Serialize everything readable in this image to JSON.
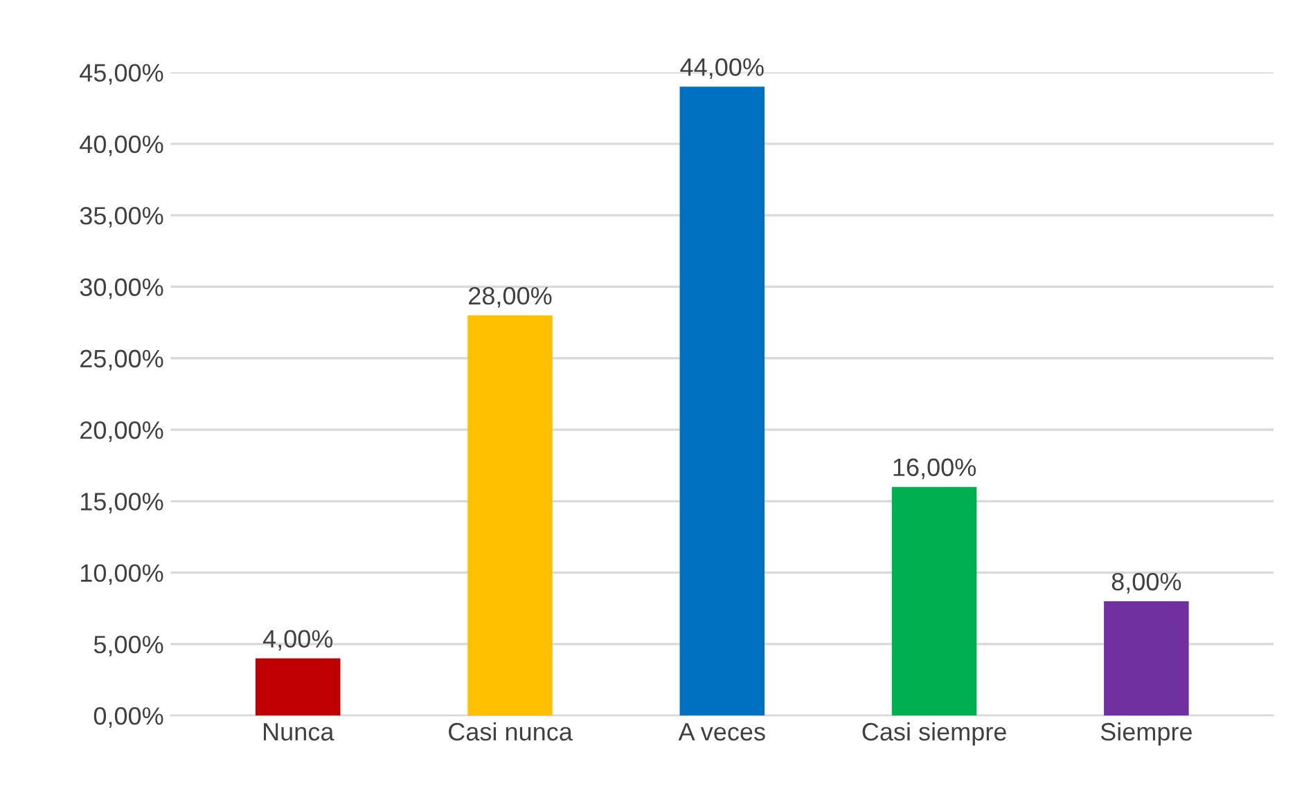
{
  "chart_data": {
    "type": "bar",
    "categories": [
      "Nunca",
      "Casi nunca",
      "A veces",
      "Casi siempre",
      "Siempre"
    ],
    "values": [
      4,
      28,
      44,
      16,
      8
    ],
    "colors": [
      "#c00000",
      "#ffc000",
      "#0070c0",
      "#00b050",
      "#7030a0"
    ],
    "value_labels": [
      "4,00%",
      "28,00%",
      "44,00%",
      "16,00%",
      "8,00%"
    ],
    "ylim": [
      0,
      45
    ],
    "yticks": [
      {
        "value": 0,
        "label": "0,00%"
      },
      {
        "value": 5,
        "label": "5,00%"
      },
      {
        "value": 10,
        "label": "10,00%"
      },
      {
        "value": 15,
        "label": "15,00%"
      },
      {
        "value": 20,
        "label": "20,00%"
      },
      {
        "value": 25,
        "label": "25,00%"
      },
      {
        "value": 30,
        "label": "30,00%"
      },
      {
        "value": 35,
        "label": "35,00%"
      },
      {
        "value": 40,
        "label": "40,00%"
      },
      {
        "value": 45,
        "label": "45,00%"
      }
    ],
    "grid": "y"
  }
}
